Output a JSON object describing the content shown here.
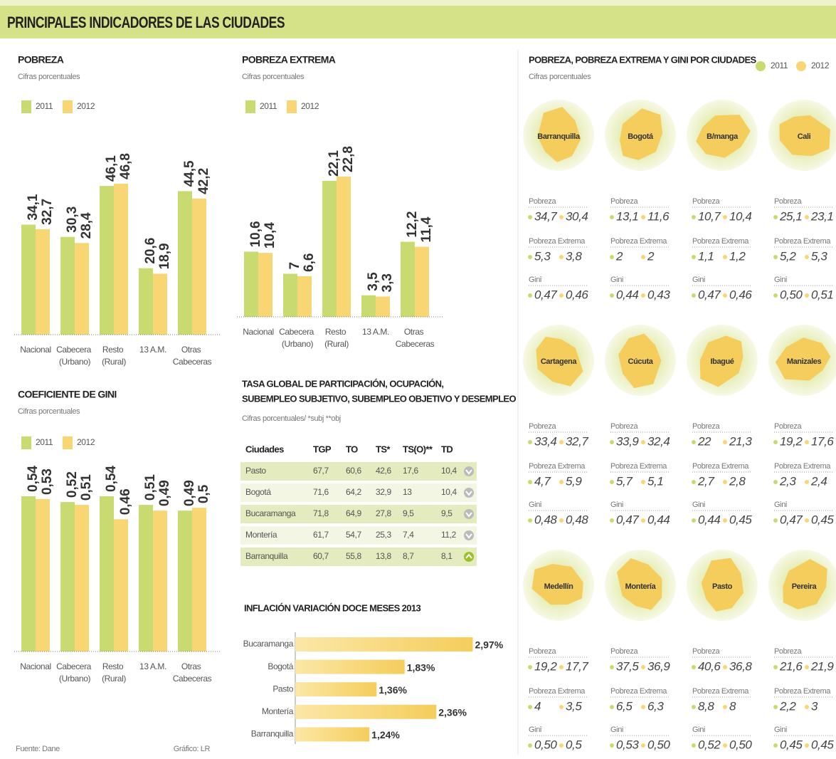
{
  "header": {
    "title": "PRINCIPALES INDICADORES DE LAS CIUDADES"
  },
  "chart_data": [
    {
      "type": "bar",
      "title": "POBREZA",
      "subtitle": "Cifras porcentuales",
      "categories": [
        "Nacional",
        "Cabecera (Urbano)",
        "Resto (Rural)",
        "13 A.M.",
        "Otras Cabeceras"
      ],
      "series": [
        {
          "name": "2011",
          "color": "#c9db70",
          "values": [
            34.1,
            30.3,
            46.1,
            20.6,
            44.5
          ],
          "value_labels": [
            "34,1",
            "30,3",
            "46,1",
            "20,6",
            "44,5"
          ]
        },
        {
          "name": "2012",
          "color": "#f8d673",
          "values": [
            32.7,
            28.4,
            46.8,
            18.9,
            42.2
          ],
          "value_labels": [
            "32,7",
            "28,4",
            "46,8",
            "18,9",
            "42,2"
          ]
        }
      ]
    },
    {
      "type": "bar",
      "title": "POBREZA EXTREMA",
      "subtitle": "Cifras porcentuales",
      "categories": [
        "Nacional",
        "Cabecera (Urbano)",
        "Resto (Rural)",
        "13 A.M.",
        "Otras Cabeceras"
      ],
      "series": [
        {
          "name": "2011",
          "color": "#c9db70",
          "values": [
            10.6,
            7,
            22.1,
            3.5,
            12.2
          ],
          "value_labels": [
            "10,6",
            "7",
            "22,1",
            "3,5",
            "12,2"
          ]
        },
        {
          "name": "2012",
          "color": "#f8d673",
          "values": [
            10.4,
            6.6,
            22.8,
            3.3,
            11.4
          ],
          "value_labels": [
            "10,4",
            "6,6",
            "22,8",
            "3,3",
            "11,4"
          ]
        }
      ]
    },
    {
      "type": "bar",
      "title": "COEFICIENTE DE GINI",
      "subtitle": "Cifras porcentuales",
      "categories": [
        "Nacional",
        "Cabecera (Urbano)",
        "Resto (Rural)",
        "13 A.M.",
        "Otras Cabeceras"
      ],
      "series": [
        {
          "name": "2011",
          "color": "#c9db70",
          "values": [
            0.54,
            0.52,
            0.54,
            0.51,
            0.49
          ],
          "value_labels": [
            "0,54",
            "0,52",
            "0,54",
            "0,51",
            "0,49"
          ]
        },
        {
          "name": "2012",
          "color": "#f8d673",
          "values": [
            0.53,
            0.51,
            0.46,
            0.49,
            0.5
          ],
          "value_labels": [
            "0,53",
            "0,51",
            "0,46",
            "0,49",
            "0,5"
          ]
        }
      ]
    },
    {
      "type": "hbar",
      "title": "INFLACIÓN VARIACIÓN DOCE MESES 2013",
      "categories": [
        "Bucaramanga",
        "Bogotá",
        "Pasto",
        "Montería",
        "Barranquilla"
      ],
      "values": [
        2.97,
        1.83,
        1.36,
        2.36,
        1.24
      ],
      "value_labels": [
        "2,97%",
        "1,83%",
        "1,36%",
        "2,36%",
        "1,24%"
      ],
      "color": "#f8d673"
    }
  ],
  "table": {
    "title": [
      "TASA GLOBAL DE PARTICIPACIÓN, OCUPACIÓN,",
      "SUBEMPLEO SUBJETIVO, SUBEMPLEO OBJETIVO Y DESEMPLEO"
    ],
    "subtitle": "Cifras porcentuales/ *subj **obj",
    "columns": [
      "Ciudades",
      "TGP",
      "TO",
      "TS*",
      "TS(O)**",
      "TD"
    ],
    "rows": [
      [
        "Pasto",
        "67,7",
        "60,6",
        "42,6",
        "17,6",
        "10,4"
      ],
      [
        "Bogotá",
        "71,6",
        "64,2",
        "32,9",
        "13",
        "10,4"
      ],
      [
        "Bucaramanga",
        "71,8",
        "64,9",
        "27,8",
        "9,5",
        "9,5"
      ],
      [
        "Montería",
        "61,7",
        "54,7",
        "25,3",
        "7,4",
        "11,2"
      ],
      [
        "Barranquilla",
        "60,7",
        "55,8",
        "13,8",
        "8,7",
        "8,1"
      ]
    ]
  },
  "cities_panel": {
    "title": "POBREZA, POBREZA EXTREMA Y GINI POR CIUDADES",
    "subtitle": "Cifras porcentuales",
    "legend": [
      "2011",
      "2012"
    ],
    "fields": [
      "Pobreza",
      "Pobreza Extrema",
      "Gini"
    ],
    "cities": [
      {
        "name": "Barranquilla",
        "values": [
          [
            "34,7",
            "30,4"
          ],
          [
            "5,3",
            "3,8"
          ],
          [
            "0,47",
            "0,46"
          ]
        ]
      },
      {
        "name": "Bogotá",
        "values": [
          [
            "13,1",
            "11,6"
          ],
          [
            "2",
            "2"
          ],
          [
            "0,44",
            "0,43"
          ]
        ]
      },
      {
        "name": "B/manga",
        "values": [
          [
            "10,7",
            "10,4"
          ],
          [
            "1,1",
            "1,2"
          ],
          [
            "0,47",
            "0,46"
          ]
        ]
      },
      {
        "name": "Cali",
        "values": [
          [
            "25,1",
            "23,1"
          ],
          [
            "5,2",
            "5,3"
          ],
          [
            "0,50",
            "0,51"
          ]
        ]
      },
      {
        "name": "Cartagena",
        "values": [
          [
            "33,4",
            "32,7"
          ],
          [
            "4,7",
            "5,9"
          ],
          [
            "0,48",
            "0,48"
          ]
        ]
      },
      {
        "name": "Cúcuta",
        "values": [
          [
            "33,9",
            "32,4"
          ],
          [
            "5,7",
            "5,1"
          ],
          [
            "0,47",
            "0,44"
          ]
        ]
      },
      {
        "name": "Ibagué",
        "values": [
          [
            "22",
            "21,3"
          ],
          [
            "2,7",
            "2,8"
          ],
          [
            "0,44",
            "0,45"
          ]
        ]
      },
      {
        "name": "Manizales",
        "values": [
          [
            "19,2",
            "17,6"
          ],
          [
            "2,3",
            "2,4"
          ],
          [
            "0,47",
            "0,45"
          ]
        ]
      },
      {
        "name": "Medellín",
        "values": [
          [
            "19,2",
            "17,7"
          ],
          [
            "4",
            "3,5"
          ],
          [
            "0,50",
            "0,5"
          ]
        ]
      },
      {
        "name": "Montería",
        "values": [
          [
            "37,5",
            "36,9"
          ],
          [
            "6,5",
            "6,3"
          ],
          [
            "0,53",
            "0,50"
          ]
        ]
      },
      {
        "name": "Pasto",
        "values": [
          [
            "40,6",
            "36,8"
          ],
          [
            "8,8",
            "8"
          ],
          [
            "0,52",
            "0,50"
          ]
        ]
      },
      {
        "name": "Pereira",
        "values": [
          [
            "21,6",
            "21,9"
          ],
          [
            "2,2",
            "3"
          ],
          [
            "0,45",
            "0,45"
          ]
        ]
      }
    ]
  },
  "footer": {
    "source": "Fuente: Dane",
    "credit": "Gráfico: LR"
  }
}
